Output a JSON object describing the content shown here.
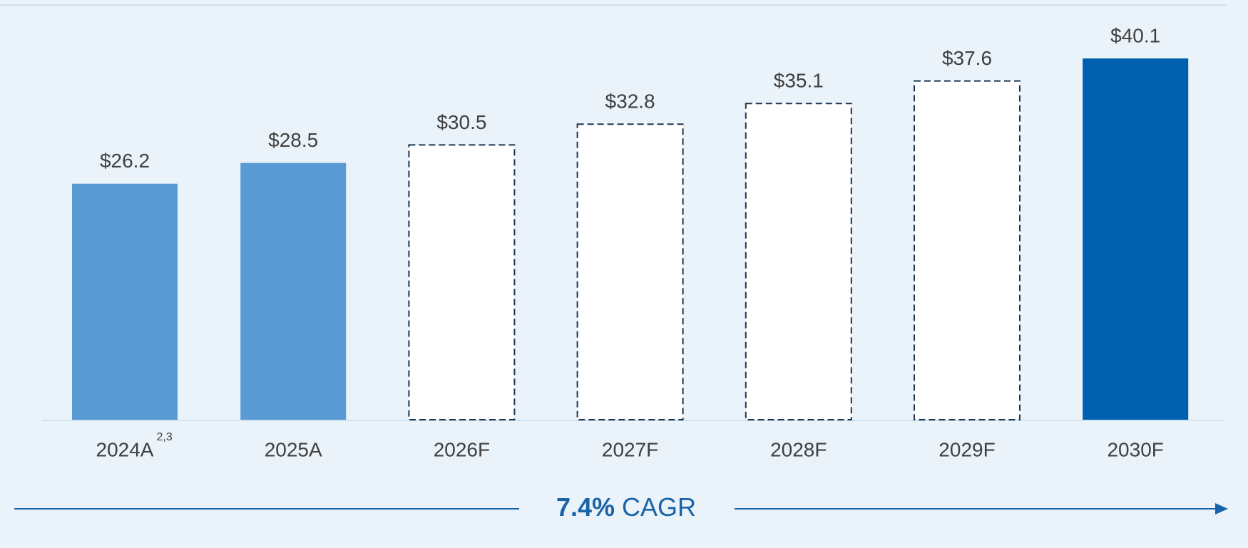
{
  "chart_data": {
    "type": "bar",
    "categories": [
      "2024A",
      "2025A",
      "2026F",
      "2027F",
      "2028F",
      "2029F",
      "2030F"
    ],
    "category_superscripts": [
      "2,3",
      null,
      null,
      null,
      null,
      null,
      null
    ],
    "values": [
      26.2,
      28.5,
      30.5,
      32.8,
      35.1,
      37.6,
      40.1
    ],
    "value_labels": [
      "$26.2",
      "$28.5",
      "$30.5",
      "$32.8",
      "$35.1",
      "$37.6",
      "$40.1"
    ],
    "colors": [
      "#5b9bd5",
      "#5b9bd5",
      "#ffffff",
      "#ffffff",
      "#ffffff",
      "#ffffff",
      "#0060b0"
    ],
    "dashed": [
      false,
      false,
      true,
      true,
      true,
      true,
      false
    ],
    "cagr": {
      "rate": "7.4%",
      "text": "CAGR"
    }
  }
}
